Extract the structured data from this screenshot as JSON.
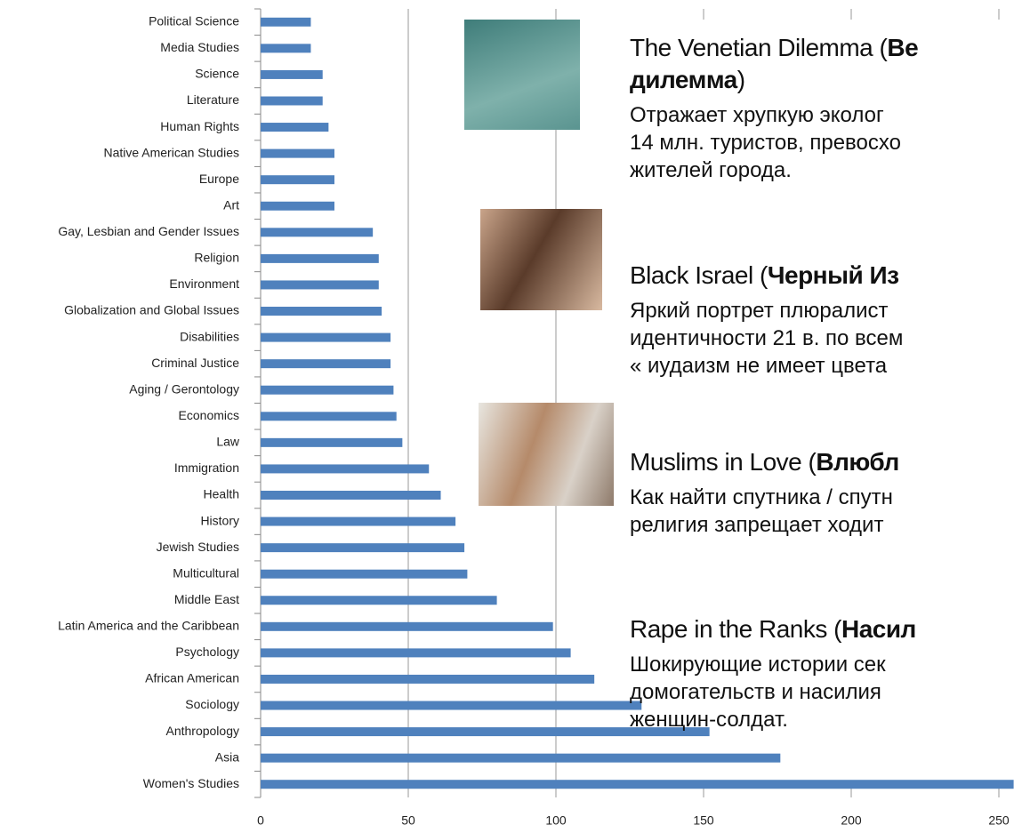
{
  "chart_data": {
    "type": "barh",
    "categories": [
      "Political Science",
      "Media Studies",
      "Science",
      "Literature",
      "Human Rights",
      "Native American Studies",
      "Europe",
      "Art",
      "Gay, Lesbian and Gender Issues",
      "Religion",
      "Environment",
      "Globalization and Global Issues",
      "Disabilities",
      "Criminal Justice",
      "Aging / Gerontology",
      "Economics",
      "Law",
      "Immigration",
      "Health",
      "History",
      "Jewish Studies",
      "Multicultural",
      "Middle East",
      "Latin America and the Caribbean",
      "Psychology",
      "African American",
      "Sociology",
      "Anthropology",
      "Asia",
      "Women's Studies"
    ],
    "values": [
      17,
      17,
      21,
      21,
      23,
      25,
      25,
      25,
      38,
      40,
      40,
      41,
      44,
      44,
      45,
      46,
      48,
      57,
      61,
      66,
      69,
      70,
      80,
      99,
      105,
      113,
      129,
      152,
      176,
      255
    ],
    "color": "#4f81bd",
    "xlim": [
      0,
      258
    ],
    "xticks": [
      0,
      50,
      100,
      150,
      200,
      250
    ],
    "grid": true
  },
  "films": [
    {
      "title": "The Venetian Dilemma (",
      "title_ru": "Ве",
      "title_ru_2": "дилемма",
      "title_end": ")",
      "description": [
        "Отражает хрупкую эколог",
        "14 млн. туристов, превосхо",
        "жителей города."
      ]
    },
    {
      "title": "Black Israel (",
      "title_ru": "Черный Из",
      "description": [
        "Яркий портрет плюралист",
        "идентичности 21 в. по всем",
        "« иудаизм не имеет цвета"
      ]
    },
    {
      "title": "Muslims in Love (",
      "title_ru": "Влюбл",
      "description": [
        "Как найти спутника / спутн",
        "религия запрещает ходит"
      ]
    },
    {
      "title": "Rape in the Ranks (",
      "title_ru": "Насил",
      "description": [
        "Шокирующие истории сек",
        "домогательств и насилия",
        "женщин-солдат."
      ]
    }
  ]
}
